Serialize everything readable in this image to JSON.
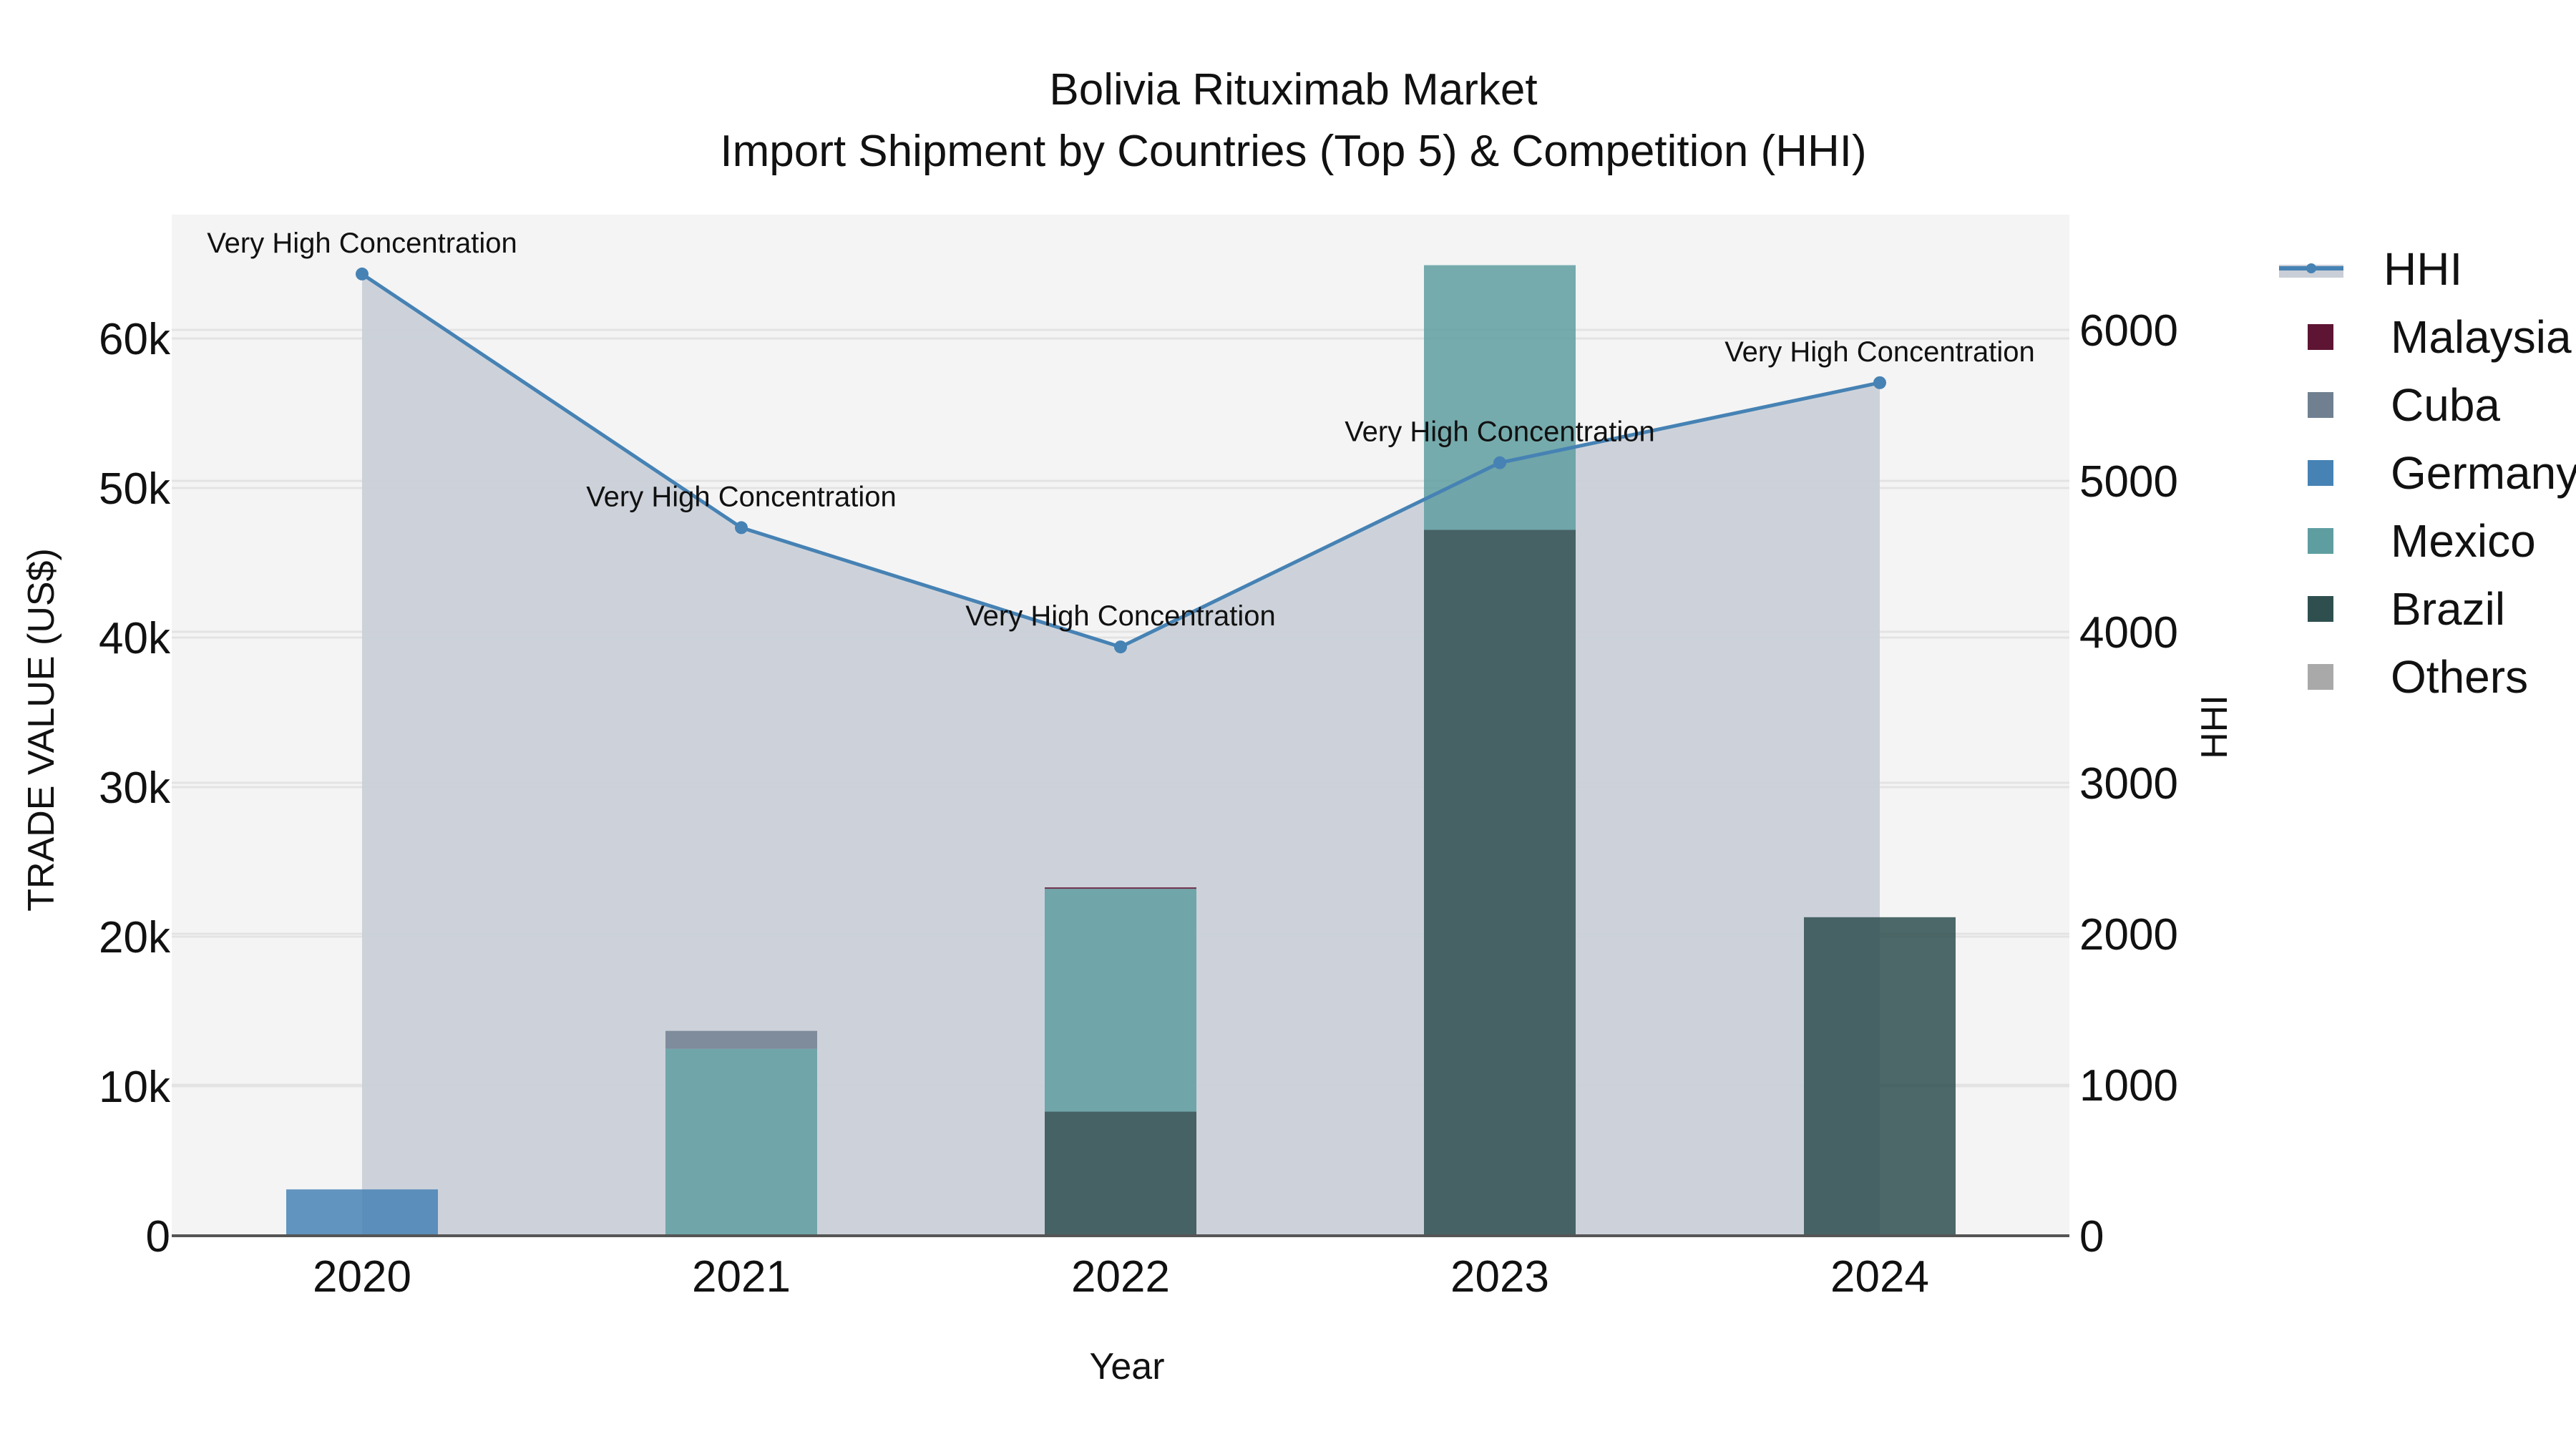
{
  "title": {
    "line1": "Bolivia Rituximab Market",
    "line2": "Import Shipment by Countries (Top 5) & Competition (HHI)"
  },
  "axes": {
    "x_title": "Year",
    "y_left_title": "TRADE VALUE (US$)",
    "y_right_title": "HHI",
    "x_ticks": [
      "2020",
      "2021",
      "2022",
      "2023",
      "2024"
    ],
    "y_left_ticks": [
      "0",
      "10k",
      "20k",
      "30k",
      "40k",
      "50k",
      "60k"
    ],
    "y_right_ticks": [
      "0",
      "1000",
      "2000",
      "3000",
      "4000",
      "5000",
      "6000"
    ]
  },
  "legend": {
    "items": [
      {
        "label": "HHI",
        "type": "line",
        "color": "#4682b4"
      },
      {
        "label": "Malaysia",
        "type": "box",
        "color": "#5e1433"
      },
      {
        "label": "Cuba",
        "type": "box",
        "color": "#708090"
      },
      {
        "label": "Germany",
        "type": "box",
        "color": "#4682b4"
      },
      {
        "label": "Mexico",
        "type": "box",
        "color": "#5f9ea0"
      },
      {
        "label": "Brazil",
        "type": "box",
        "color": "#2f4f4f"
      },
      {
        "label": "Others",
        "type": "box",
        "color": "#a9a9a9"
      }
    ]
  },
  "chart_data": {
    "type": "bar",
    "subtype": "stacked bar + line (dual axis)",
    "title": "Bolivia Rituximab Market — Import Shipment by Countries (Top 5) & Competition (HHI)",
    "xlabel": "Year",
    "ylabel": "TRADE VALUE (US$)",
    "y2label": "HHI",
    "categories": [
      "2020",
      "2021",
      "2022",
      "2023",
      "2024"
    ],
    "ylim": [
      0,
      68000
    ],
    "y2lim": [
      0,
      6750
    ],
    "grid": true,
    "legend_position": "right",
    "series": [
      {
        "name": "Brazil",
        "type": "bar",
        "axis": "left",
        "color": "#2f4f4f",
        "values": [
          0,
          0,
          8300,
          47200,
          21300
        ]
      },
      {
        "name": "Mexico",
        "type": "bar",
        "axis": "left",
        "color": "#5f9ea0",
        "values": [
          0,
          12500,
          14900,
          17700,
          0
        ]
      },
      {
        "name": "Germany",
        "type": "bar",
        "axis": "left",
        "color": "#4682b4",
        "values": [
          3100,
          0,
          0,
          0,
          0
        ]
      },
      {
        "name": "Cuba",
        "type": "bar",
        "axis": "left",
        "color": "#708090",
        "values": [
          0,
          1200,
          0,
          0,
          0
        ]
      },
      {
        "name": "Malaysia",
        "type": "bar",
        "axis": "left",
        "color": "#5e1433",
        "values": [
          0,
          0,
          50,
          0,
          0
        ]
      },
      {
        "name": "Others",
        "type": "bar",
        "axis": "left",
        "color": "#a9a9a9",
        "values": [
          0,
          0,
          0,
          0,
          0
        ]
      },
      {
        "name": "HHI",
        "type": "line",
        "axis": "right",
        "color": "#4682b4",
        "fill": "#c9ced7",
        "values": [
          6370,
          4690,
          3900,
          5120,
          5650
        ]
      }
    ],
    "annotations": [
      {
        "x": "2020",
        "text": "Very High Concentration"
      },
      {
        "x": "2021",
        "text": "Very High Concentration"
      },
      {
        "x": "2022",
        "text": "Very High Concentration"
      },
      {
        "x": "2023",
        "text": "Very High Concentration"
      },
      {
        "x": "2024",
        "text": "Very High Concentration"
      }
    ]
  }
}
